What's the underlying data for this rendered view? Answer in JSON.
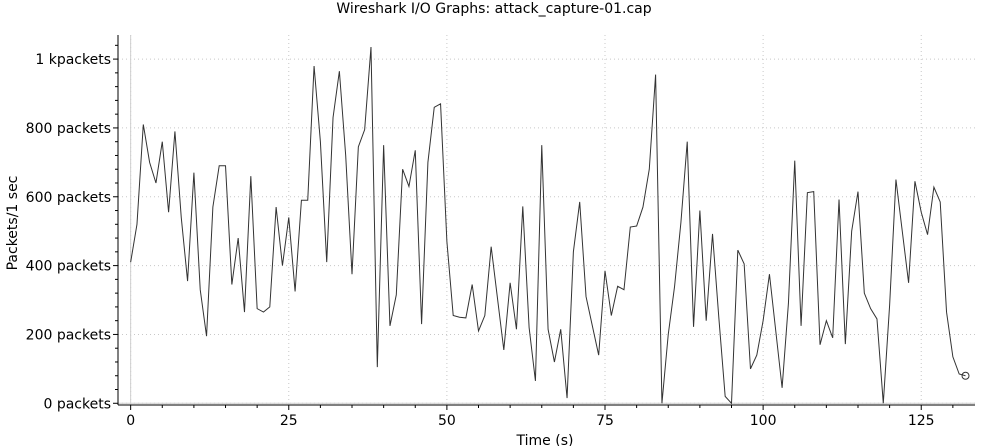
{
  "chart_data": {
    "type": "line",
    "title": "Wireshark I/O Graphs: attack_capture-01.cap",
    "xlabel": "Time (s)",
    "ylabel": "Packets/1 sec",
    "xlim": [
      -2,
      133.5
    ],
    "ylim": [
      -5,
      1070
    ],
    "x_ticks": [
      {
        "value": 0,
        "label": "0"
      },
      {
        "value": 25,
        "label": "25"
      },
      {
        "value": 50,
        "label": "50"
      },
      {
        "value": 75,
        "label": "75"
      },
      {
        "value": 100,
        "label": "100"
      },
      {
        "value": 125,
        "label": "125"
      }
    ],
    "y_ticks": [
      {
        "value": 0,
        "label": "0 packets"
      },
      {
        "value": 200,
        "label": "200 packets"
      },
      {
        "value": 400,
        "label": "400 packets"
      },
      {
        "value": 600,
        "label": "600 packets"
      },
      {
        "value": 800,
        "label": "800 packets"
      },
      {
        "value": 1000,
        "label": "1 kpackets"
      }
    ],
    "grid": true,
    "line_color": "#333333",
    "end_marker": true,
    "series": [
      {
        "values": [
          410,
          520,
          810,
          700,
          640,
          760,
          555,
          790,
          540,
          355,
          670,
          330,
          195,
          570,
          690,
          690,
          345,
          480,
          265,
          660,
          275,
          265,
          280,
          570,
          400,
          540,
          325,
          590,
          590,
          980,
          760,
          410,
          830,
          965,
          720,
          375,
          745,
          795,
          1035,
          105,
          750,
          225,
          315,
          680,
          630,
          735,
          230,
          700,
          860,
          870,
          470,
          255,
          250,
          248,
          345,
          210,
          255,
          455,
          305,
          155,
          350,
          215,
          572,
          220,
          65,
          750,
          215,
          120,
          215,
          15,
          440,
          585,
          310,
          225,
          140,
          385,
          255,
          340,
          330,
          512,
          515,
          570,
          680,
          955,
          0,
          200,
          340,
          525,
          760,
          222,
          560,
          240,
          492,
          248,
          20,
          0,
          445,
          405,
          100,
          140,
          240,
          375,
          210,
          45,
          290,
          705,
          225,
          612,
          615,
          170,
          240,
          190,
          592,
          172,
          500,
          615,
          320,
          275,
          245,
          0,
          285,
          650,
          500,
          350,
          645,
          555,
          490,
          628,
          585,
          265,
          135,
          85,
          80
        ]
      }
    ]
  }
}
